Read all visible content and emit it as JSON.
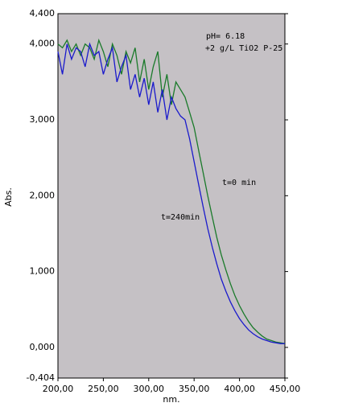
{
  "chart_data": {
    "type": "line",
    "x_label": "nm.",
    "y_label": "Abs.",
    "annotations": [
      "pH= 6.18",
      "+2 g/L TiO2 P-25"
    ],
    "x": [
      200,
      205,
      210,
      215,
      220,
      225,
      230,
      235,
      240,
      245,
      250,
      255,
      260,
      265,
      270,
      275,
      280,
      285,
      290,
      295,
      300,
      305,
      310,
      315,
      320,
      325,
      330,
      335,
      340,
      345,
      350,
      355,
      360,
      365,
      370,
      375,
      380,
      385,
      390,
      395,
      400,
      405,
      410,
      415,
      420,
      425,
      430,
      435,
      440,
      445,
      450
    ],
    "series": [
      {
        "name": "t=0 min",
        "color": "#1a7a2a",
        "values": [
          4.0,
          3.95,
          4.05,
          3.9,
          4.0,
          3.85,
          4.0,
          3.95,
          3.8,
          4.05,
          3.9,
          3.7,
          4.0,
          3.85,
          3.6,
          3.9,
          3.75,
          3.95,
          3.5,
          3.8,
          3.4,
          3.7,
          3.9,
          3.3,
          3.6,
          3.2,
          3.5,
          3.4,
          3.3,
          3.1,
          2.9,
          2.6,
          2.3,
          2.0,
          1.72,
          1.45,
          1.22,
          1.02,
          0.84,
          0.68,
          0.55,
          0.44,
          0.34,
          0.26,
          0.2,
          0.15,
          0.11,
          0.09,
          0.07,
          0.06,
          0.05
        ]
      },
      {
        "name": "t=240min",
        "color": "#1a1acc",
        "values": [
          3.9,
          3.6,
          4.0,
          3.8,
          3.95,
          3.9,
          3.7,
          4.0,
          3.85,
          3.9,
          3.6,
          3.8,
          3.95,
          3.5,
          3.7,
          3.85,
          3.4,
          3.6,
          3.3,
          3.55,
          3.2,
          3.5,
          3.1,
          3.4,
          3.0,
          3.3,
          3.15,
          3.05,
          3.0,
          2.75,
          2.45,
          2.15,
          1.85,
          1.57,
          1.32,
          1.1,
          0.9,
          0.74,
          0.6,
          0.48,
          0.38,
          0.3,
          0.23,
          0.18,
          0.14,
          0.11,
          0.09,
          0.07,
          0.06,
          0.05,
          0.05
        ]
      }
    ],
    "xlim": [
      200,
      450
    ],
    "xticks": [
      {
        "value": 200,
        "label": "200,00"
      },
      {
        "value": 250,
        "label": "250,00"
      },
      {
        "value": 300,
        "label": "300,00"
      },
      {
        "value": 350,
        "label": "350,00"
      },
      {
        "value": 400,
        "label": "400,00"
      },
      {
        "value": 450,
        "label": "450,00"
      }
    ],
    "ylim": [
      -0.404,
      4.4
    ],
    "yticks": [
      {
        "value": 4.4,
        "label": "4,400"
      },
      {
        "value": 4,
        "label": "4,000"
      },
      {
        "value": 3,
        "label": "3,000"
      },
      {
        "value": 2,
        "label": "2,000"
      },
      {
        "value": 1,
        "label": "1,000"
      },
      {
        "value": 0,
        "label": "0,000"
      },
      {
        "value": -0.404,
        "label": "-0,404"
      }
    ],
    "grid": false,
    "plot_background": "#c5c1c5"
  }
}
